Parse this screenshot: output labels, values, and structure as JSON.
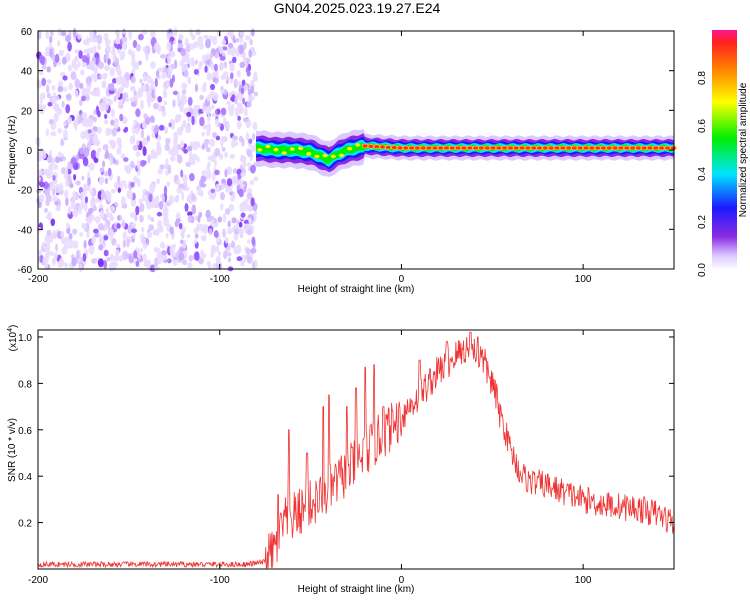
{
  "title": "GN04.2025.023.19.27.E24",
  "chart_data": [
    {
      "type": "heatmap",
      "xlabel": "Height of straight line (km)",
      "ylabel": "Frequency (Hz)",
      "xlim": [
        -200,
        150
      ],
      "ylim": [
        -60,
        60
      ],
      "xticks": [
        -200,
        -100,
        0,
        100
      ],
      "yticks": [
        -60,
        -40,
        -20,
        0,
        20,
        40,
        60
      ],
      "noise_region_x": [
        -200,
        -80
      ],
      "ridge": {
        "x": [
          -80,
          -70,
          -60,
          -50,
          -45,
          -40,
          -35,
          -30,
          -25,
          -20,
          0,
          50,
          100,
          150
        ],
        "y": [
          1,
          0,
          0,
          -1,
          -3,
          -5,
          -2,
          0,
          1,
          2,
          1,
          1,
          1,
          1
        ]
      },
      "colorbar": {
        "label": "Normalized spectral amplitude",
        "ticks": [
          0.0,
          0.2,
          0.4,
          0.6,
          0.8
        ],
        "range": [
          0,
          1
        ]
      }
    },
    {
      "type": "line",
      "xlabel": "Height of straight line (km)",
      "ylabel": "SNR (10 * v/v)",
      "multiplier_label": "(x10",
      "multiplier_exp": "4",
      "xlim": [
        -200,
        150
      ],
      "ylim": [
        0,
        1.03
      ],
      "xticks": [
        -200,
        -100,
        0,
        100
      ],
      "yticks": [
        0.2,
        0.4,
        0.6,
        0.8,
        1.0
      ],
      "color": "#ee3333",
      "series": [
        {
          "x": [
            -200,
            -150,
            -100,
            -85,
            -75,
            -70,
            -68,
            -65,
            -60,
            -55,
            -50,
            -45,
            -40,
            -35,
            -30,
            -20,
            -10,
            0,
            10,
            20,
            30,
            35,
            40,
            45,
            50,
            55,
            60,
            65,
            70,
            75,
            80,
            90,
            100,
            110,
            120,
            130,
            140,
            150
          ],
          "y": [
            0.02,
            0.02,
            0.02,
            0.02,
            0.03,
            0.08,
            0.12,
            0.2,
            0.22,
            0.25,
            0.28,
            0.3,
            0.34,
            0.38,
            0.42,
            0.5,
            0.58,
            0.66,
            0.75,
            0.85,
            0.92,
            0.95,
            0.94,
            0.9,
            0.8,
            0.65,
            0.52,
            0.42,
            0.38,
            0.37,
            0.36,
            0.33,
            0.3,
            0.28,
            0.27,
            0.26,
            0.24,
            0.2
          ]
        }
      ],
      "spikes": {
        "x": [
          -68,
          -62,
          -52,
          -43,
          -40,
          -30,
          -25,
          -20,
          -15,
          -10,
          -5,
          10,
          25,
          38,
          42
        ],
        "y": [
          0.32,
          0.6,
          0.5,
          0.7,
          0.75,
          0.7,
          0.78,
          0.87,
          0.88,
          0.7,
          0.68,
          0.9,
          0.98,
          1.02,
          1.0
        ]
      }
    }
  ]
}
